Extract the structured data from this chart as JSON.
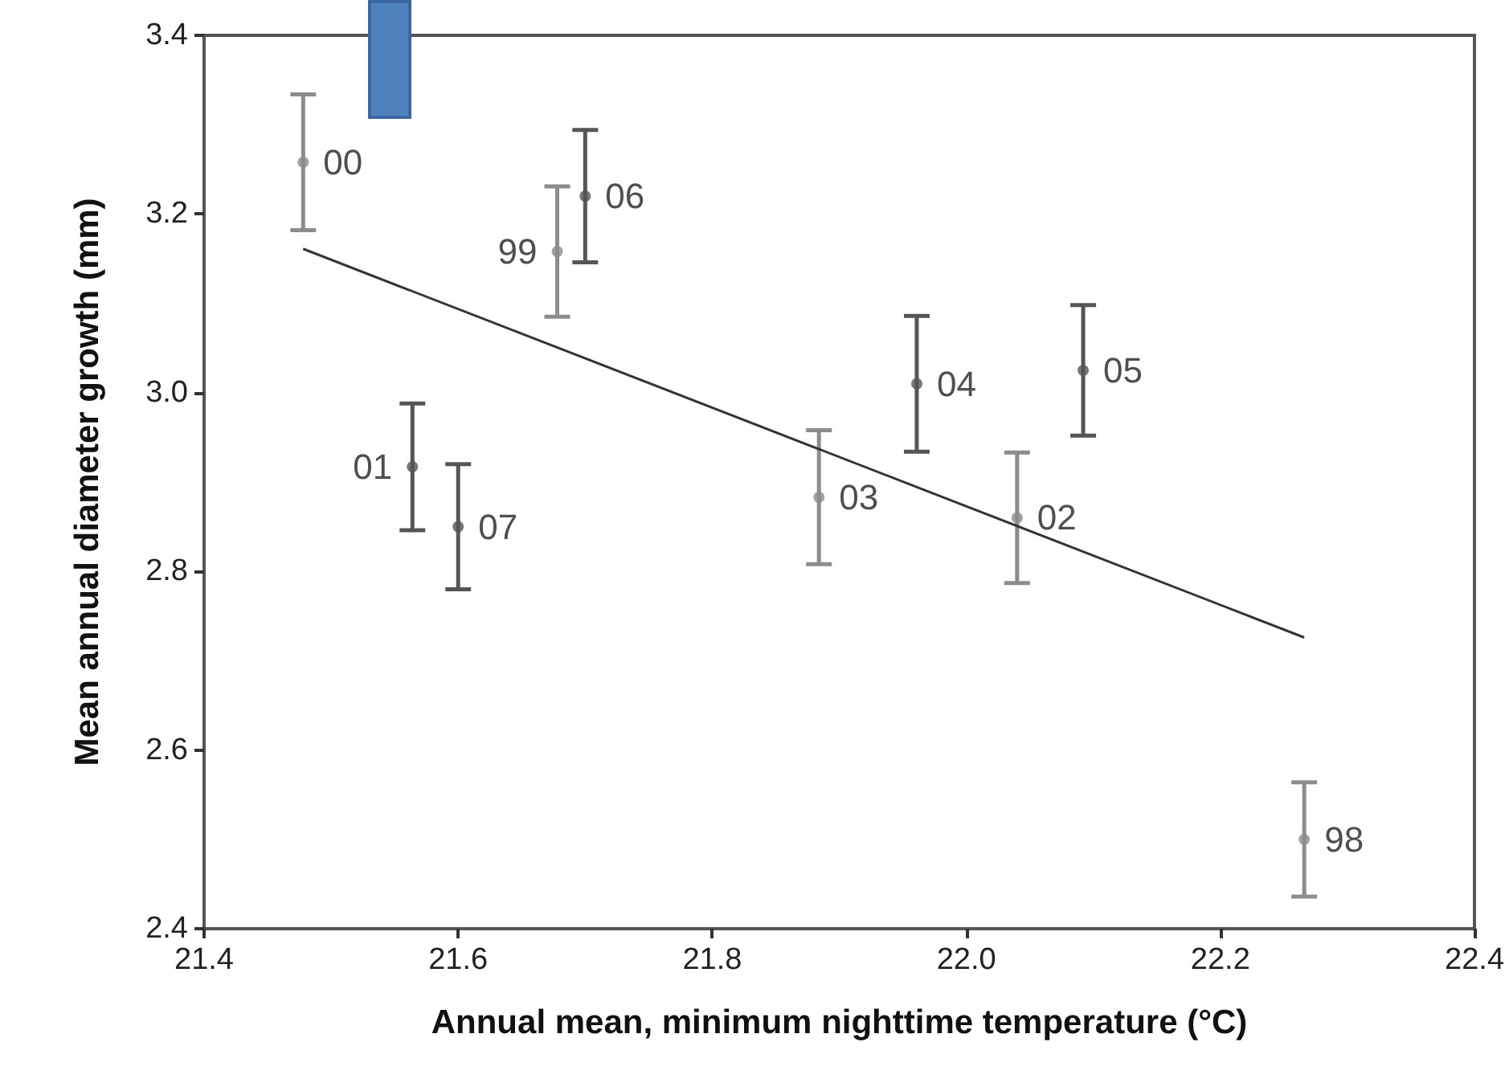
{
  "chart_data": {
    "type": "scatter",
    "xlabel": "Annual mean, minimum nighttime temperature (°C)",
    "ylabel": "Mean annual diameter growth (mm)",
    "xlim": [
      21.4,
      22.4
    ],
    "xticks": [
      21.4,
      21.6,
      21.8,
      {
        "value": 22,
        "label": "22.0"
      },
      22.2,
      22.4
    ],
    "ylim": [
      2.4,
      3.4
    ],
    "yticks": [
      2.4,
      2.6,
      2.8,
      {
        "value": 3,
        "label": "3.0"
      },
      3.2,
      3.4
    ],
    "grid": false,
    "legend": false,
    "marker": "circle",
    "series": [
      {
        "name": "00",
        "color": "#8c8c8c",
        "x": [
          21.478
        ],
        "values": [
          3.258
        ],
        "errors": [
          0.076
        ]
      },
      {
        "name": "06",
        "color": "#555555",
        "x": [
          21.7
        ],
        "values": [
          3.22
        ],
        "errors": [
          0.074
        ]
      },
      {
        "name": "99",
        "color": "#8c8c8c",
        "x": [
          21.678
        ],
        "values": [
          3.158
        ],
        "errors": [
          0.073
        ]
      },
      {
        "name": "01",
        "color": "#555555",
        "x": [
          21.564
        ],
        "values": [
          2.917
        ],
        "errors": [
          0.071
        ]
      },
      {
        "name": "07",
        "color": "#555555",
        "x": [
          21.6
        ],
        "values": [
          2.85
        ],
        "errors": [
          0.07
        ]
      },
      {
        "name": "03",
        "color": "#8c8c8c",
        "x": [
          21.884
        ],
        "values": [
          2.883
        ],
        "errors": [
          0.075
        ]
      },
      {
        "name": "04",
        "color": "#555555",
        "x": [
          21.961
        ],
        "values": [
          3.01
        ],
        "errors": [
          0.076
        ]
      },
      {
        "name": "05",
        "color": "#555555",
        "x": [
          22.092
        ],
        "values": [
          3.025
        ],
        "errors": [
          0.073
        ]
      },
      {
        "name": "02",
        "color": "#8c8c8c",
        "x": [
          22.04
        ],
        "values": [
          2.86
        ],
        "errors": [
          0.073
        ]
      },
      {
        "name": "98",
        "color": "#8c8c8c",
        "x": [
          22.266
        ],
        "values": [
          2.5
        ],
        "errors": [
          0.064
        ]
      },
      {
        "type": "line",
        "color": "#333333",
        "marker": "none",
        "x": [
          21.478,
          22.266
        ],
        "values": [
          3.161,
          2.726
        ]
      }
    ]
  }
}
